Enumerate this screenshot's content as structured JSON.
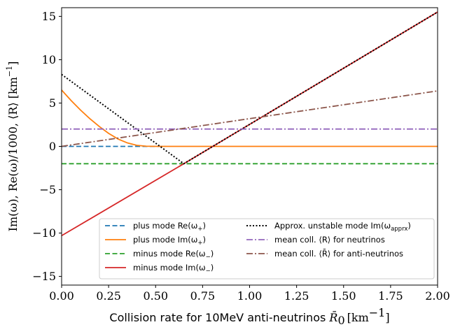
{
  "chart_data": {
    "type": "line",
    "title": "",
    "xlabel": "Collision rate for 10MeV anti-neutrinos R̄₀ [km⁻¹]",
    "xlabel_parts": {
      "text": "Collision rate for 10MeV anti-neutrinos ",
      "symbol": "R̄",
      "sub": "0",
      "unit": "[km",
      "unit_exp": "−1",
      "unit_close": "]"
    },
    "ylabel": "Im(ω), Re(ω)/1000, ⟨R⟩ [km⁻¹]",
    "ylabel_parts": {
      "main": "Im(ω), Re(ω)/1000, ⟨R⟩ [km",
      "exp": "−1",
      "close": "]"
    },
    "xlim": [
      0,
      2
    ],
    "ylim": [
      -16,
      16
    ],
    "xticks": [
      0,
      0.25,
      0.5,
      0.75,
      1.0,
      1.25,
      1.5,
      1.75,
      2.0
    ],
    "xtick_labels": [
      "0.00",
      "0.25",
      "0.50",
      "0.75",
      "1.00",
      "1.25",
      "1.50",
      "1.75",
      "2.00"
    ],
    "yticks": [
      -15,
      -10,
      -5,
      0,
      5,
      10,
      15
    ],
    "ytick_labels": [
      "−15",
      "−10",
      "−5",
      "0",
      "5",
      "10",
      "15"
    ],
    "grid": false,
    "legend_position": "lower-right",
    "series": [
      {
        "name": "plus mode Re(ω+)",
        "label_main": "plus mode Re(ω",
        "label_sub": "+",
        "color": "#1f77b4",
        "dash": "dashed",
        "x": [
          0,
          0.5,
          0.55
        ],
        "y": [
          0,
          0,
          0
        ]
      },
      {
        "name": "plus mode Im(ω+)",
        "label_main": "plus mode Im(ω",
        "label_sub": "+",
        "color": "#ff7f0e",
        "dash": "solid",
        "x": [
          0,
          0.05,
          0.1,
          0.15,
          0.2,
          0.25,
          0.3,
          0.35,
          0.4,
          0.45,
          0.5,
          2.0
        ],
        "y": [
          6.5,
          5.3,
          4.2,
          3.2,
          2.3,
          1.5,
          0.85,
          0.4,
          0.12,
          0.02,
          0,
          0
        ]
      },
      {
        "name": "minus mode Re(ω−)",
        "label_main": "minus mode Re(ω",
        "label_sub": "−",
        "color": "#2ca02c",
        "dash": "dashed",
        "x": [
          0,
          2.0
        ],
        "y": [
          -2,
          -2
        ]
      },
      {
        "name": "minus mode Im(ω−)",
        "label_main": "minus mode Im(ω",
        "label_sub": "−",
        "color": "#d62728",
        "dash": "solid",
        "x": [
          0,
          0.65,
          2.0
        ],
        "y": [
          -10.3,
          -2,
          15.5
        ]
      },
      {
        "name": "Approx. unstable mode Im(ωapprx)",
        "label_main": "Approx. unstable mode Im(ω",
        "label_sub": "apprx",
        "color": "#000000",
        "dash": "dotted",
        "x": [
          0,
          0.65,
          2.0
        ],
        "y": [
          8.3,
          -2,
          15.5
        ]
      },
      {
        "name": "mean coll. ⟨R⟩ for neutrinos",
        "label_main": "mean coll. ⟨R⟩ for neutrinos",
        "label_sub": "",
        "color": "#9467bd",
        "dash": "dashdot",
        "x": [
          0,
          2.0
        ],
        "y": [
          2,
          2
        ]
      },
      {
        "name": "mean coll. ⟨R̄⟩ for anti-neutrinos",
        "label_main": "mean coll. ⟨R̄⟩ for anti-neutrinos",
        "label_sub": "",
        "color": "#8c564b",
        "dash": "dashdot",
        "x": [
          0,
          2.0
        ],
        "y": [
          0,
          6.4
        ]
      }
    ]
  }
}
